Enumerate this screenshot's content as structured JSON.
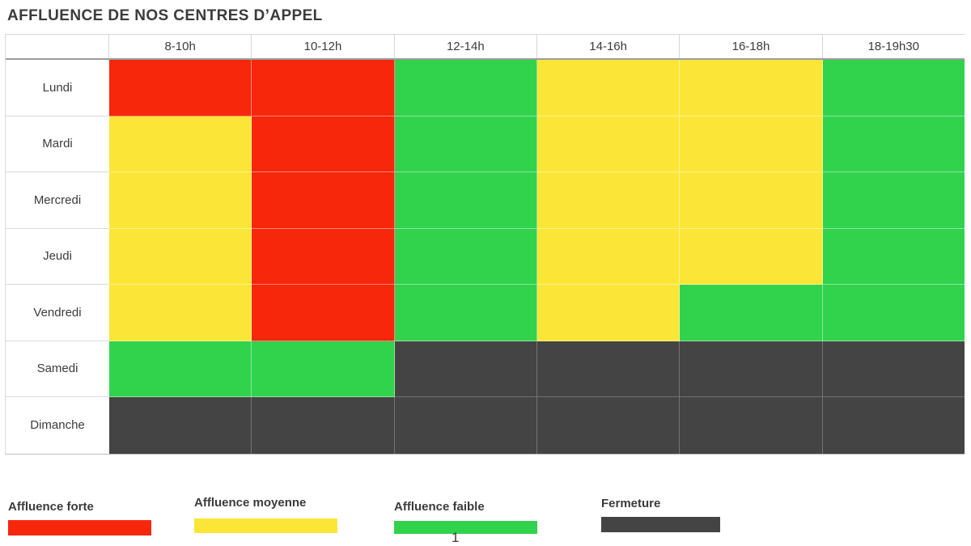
{
  "title": "AFFLUENCE DE NOS CENTRES D’APPEL",
  "page_number": "1",
  "colors": {
    "forte": "#f7270b",
    "moyenne": "#fbe637",
    "faible": "#31d24c",
    "fermeture": "#444444"
  },
  "chart_data": {
    "type": "heatmap",
    "title": "AFFLUENCE DE NOS CENTRES D’APPEL",
    "columns": [
      "8-10h",
      "10-12h",
      "12-14h",
      "14-16h",
      "16-18h",
      "18-19h30"
    ],
    "rows": [
      "Lundi",
      "Mardi",
      "Mercredi",
      "Jeudi",
      "Vendredi",
      "Samedi",
      "Dimanche"
    ],
    "values": [
      [
        "forte",
        "forte",
        "faible",
        "moyenne",
        "moyenne",
        "faible"
      ],
      [
        "moyenne",
        "forte",
        "faible",
        "moyenne",
        "moyenne",
        "faible"
      ],
      [
        "moyenne",
        "forte",
        "faible",
        "moyenne",
        "moyenne",
        "faible"
      ],
      [
        "moyenne",
        "forte",
        "faible",
        "moyenne",
        "moyenne",
        "faible"
      ],
      [
        "moyenne",
        "forte",
        "faible",
        "moyenne",
        "faible",
        "faible"
      ],
      [
        "faible",
        "faible",
        "fermeture",
        "fermeture",
        "fermeture",
        "fermeture"
      ],
      [
        "fermeture",
        "fermeture",
        "fermeture",
        "fermeture",
        "fermeture",
        "fermeture"
      ]
    ],
    "legend": [
      {
        "key": "forte",
        "label": "Affluence forte",
        "color": "#f7270b"
      },
      {
        "key": "moyenne",
        "label": "Affluence moyenne",
        "color": "#fbe637"
      },
      {
        "key": "faible",
        "label": "Affluence faible",
        "color": "#31d24c"
      },
      {
        "key": "fermeture",
        "label": "Fermeture",
        "color": "#444444"
      }
    ],
    "layout": {
      "legend_position": "bottom",
      "grid": true
    }
  }
}
